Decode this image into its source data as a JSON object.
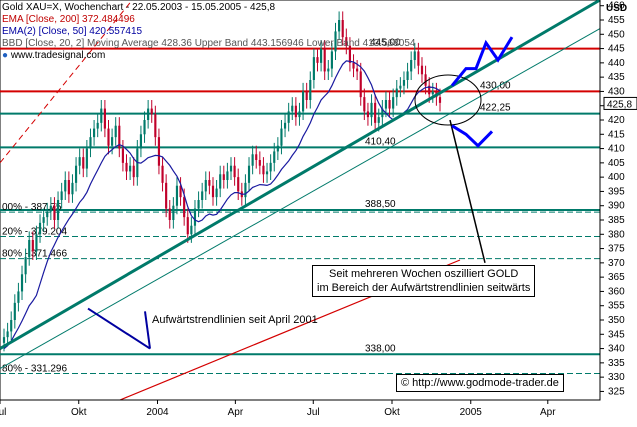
{
  "header": {
    "line1": "Gold XAU=X, Wochenchart - 22.05.2003 - 15.05.2005 - 425,8",
    "line2": "EMA [Close, 200] 372.484496",
    "line3": "EMA(2) [Close, 50] 420.557415",
    "line4": "BBD [Close, 20, 2] Moving Average 428.36 Upper Band 443.156946 Lower Band 413.563054",
    "source": "www.tradesignal.com"
  },
  "currency": "USD",
  "colors": {
    "candle_up": "#007a6a",
    "candle_down": "#c0002a",
    "level_line": "#007a6a",
    "resistance": "#d40000",
    "ema200": "#d40000",
    "ema50": "#1a1aa0",
    "arrows": "#0000ff",
    "header_red": "#c00000",
    "header_blue": "#0000a0"
  },
  "annotations": {
    "oscillation_note_line1": "Seit mehreren Wochen  oszilliert GOLD",
    "oscillation_note_line2": "im Bereich der Aufwärtstrendlinien seitwärts",
    "trendline_note": "Aufwärtstrendlinien seit April 2001",
    "copyright": "© http://www.godmode-trader.de"
  },
  "chart_data": {
    "type": "candlestick",
    "title": "Gold XAU=X, Wochenchart - 22.05.2003 - 15.05.2005 - 425,8",
    "currency": "USD",
    "ylim": [
      322,
      462
    ],
    "y_ticks": [
      325,
      330,
      335,
      340,
      345,
      350,
      355,
      360,
      365,
      370,
      375,
      380,
      385,
      390,
      395,
      400,
      405,
      410,
      415,
      420,
      425,
      430,
      435,
      440,
      445,
      450,
      455,
      460
    ],
    "last_value_label": "425,8",
    "x_range": [
      "2003-07",
      "2005-06"
    ],
    "x_ticks": [
      {
        "date": "2003-07",
        "label": "Jul"
      },
      {
        "date": "2003-10",
        "label": "Okt"
      },
      {
        "date": "2004-01",
        "label": "2004"
      },
      {
        "date": "2004-04",
        "label": "Apr"
      },
      {
        "date": "2004-07",
        "label": "Jul"
      },
      {
        "date": "2004-10",
        "label": "Okt"
      },
      {
        "date": "2005-01",
        "label": "2005"
      },
      {
        "date": "2005-04",
        "label": "Apr"
      }
    ],
    "horizontal_levels": [
      {
        "value": 430.0,
        "label": "430,00",
        "color": "#d40000"
      },
      {
        "value": 445.0,
        "label": "445,00",
        "color": "#d40000"
      },
      {
        "value": 422.25,
        "label": "422,25",
        "color": "#007a6a"
      },
      {
        "value": 410.4,
        "label": "410,40",
        "color": "#007a6a"
      },
      {
        "value": 388.5,
        "label": "388,50",
        "color": "#007a6a"
      },
      {
        "value": 338.0,
        "label": "338,00",
        "color": "#007a6a"
      }
    ],
    "fib_levels": [
      {
        "value": 387.75,
        "label": "00% - 387.75"
      },
      {
        "value": 379.204,
        "label": "20% - 379.204"
      },
      {
        "value": 371.466,
        "label": "80% - 371.466"
      },
      {
        "value": 331.296,
        "label": "80% - 331.296"
      }
    ],
    "candles_close": [
      344,
      346,
      350,
      356,
      360,
      366,
      372,
      378,
      374,
      380,
      384,
      386,
      388,
      390,
      385,
      392,
      395,
      399,
      394,
      398,
      404,
      407,
      403,
      410,
      414,
      417,
      419,
      424,
      417,
      411,
      414,
      418,
      410,
      405,
      402,
      404,
      400,
      410,
      415,
      420,
      424,
      422,
      414,
      404,
      398,
      389,
      385,
      390,
      397,
      393,
      386,
      380,
      383,
      389,
      392,
      395,
      399,
      397,
      393,
      396,
      401,
      399,
      402,
      404,
      400,
      395,
      393,
      398,
      404,
      408,
      406,
      404,
      401,
      402,
      405,
      409,
      411,
      417,
      419,
      423,
      425,
      421,
      423,
      430,
      427,
      434,
      442,
      440,
      445,
      437,
      438,
      444,
      451,
      455,
      449,
      446,
      440,
      438,
      437,
      428,
      423,
      421,
      426,
      419,
      421,
      424,
      427,
      424,
      428,
      431,
      432,
      434,
      437,
      441,
      444,
      439,
      436,
      432,
      429,
      430,
      428,
      426
    ],
    "series": [
      {
        "name": "EMA [Close, 200]",
        "value": 372.484496
      },
      {
        "name": "EMA(2) [Close, 50]",
        "value": 420.557415
      },
      {
        "name": "BBD [Close, 20, 2]",
        "moving_average": 428.36,
        "upper_band": 443.156946,
        "lower_band": 413.563054
      }
    ]
  }
}
